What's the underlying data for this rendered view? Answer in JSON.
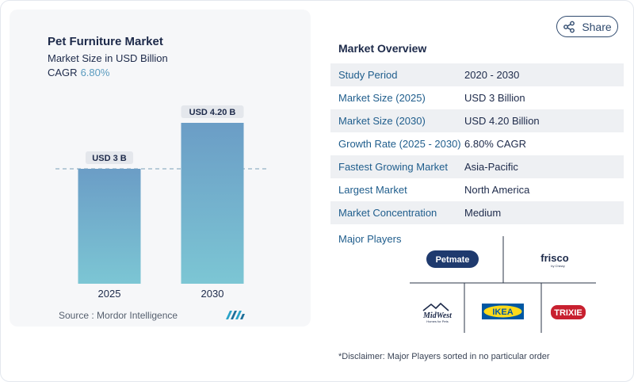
{
  "share": {
    "label": "Share",
    "icon": "share-icon"
  },
  "chart": {
    "title": "Pet Furniture Market",
    "subtitle": "Market Size in USD Billion",
    "cagr_label": "CAGR",
    "cagr_value": "6.80%",
    "source": "Source :  Mordor Intelligence",
    "colors": {
      "bar_top": "#6b9dc6",
      "bar_bottom": "#7cc6d4",
      "label_bg": "#e4e7ec",
      "dash": "#7a9fb8"
    }
  },
  "chart_data": {
    "type": "bar",
    "title": "Pet Furniture Market",
    "subtitle": "Market Size in USD Billion",
    "categories": [
      "2025",
      "2030"
    ],
    "values": [
      3,
      4.2
    ],
    "data_labels": [
      "USD 3 B",
      "USD 4.20 B"
    ],
    "xlabel": "",
    "ylabel": "",
    "ylim": [
      0,
      4.8
    ],
    "reference_line": 3,
    "grid": false
  },
  "overview": {
    "title": "Market Overview",
    "rows": [
      {
        "key": "Study Period",
        "value": "2020 - 2030"
      },
      {
        "key": "Market Size (2025)",
        "value": "USD 3 Billion"
      },
      {
        "key": "Market Size (2030)",
        "value": "USD 4.20 Billion"
      },
      {
        "key": "Growth Rate (2025 - 2030)",
        "value": "6.80% CAGR"
      },
      {
        "key": "Fastest Growing Market",
        "value": "Asia-Pacific"
      },
      {
        "key": "Largest Market",
        "value": "North America"
      },
      {
        "key": "Market Concentration",
        "value": "Medium"
      }
    ]
  },
  "players": {
    "label": "Major Players",
    "logos": [
      {
        "name": "Petmate"
      },
      {
        "name": "frisco",
        "tagline": "by Chewy"
      },
      {
        "name": "MidWest",
        "tagline": "Homes for Pets"
      },
      {
        "name": "IKEA"
      },
      {
        "name": "TRIXIE"
      }
    ]
  },
  "disclaimer": "*Disclaimer: Major Players sorted in no particular order"
}
